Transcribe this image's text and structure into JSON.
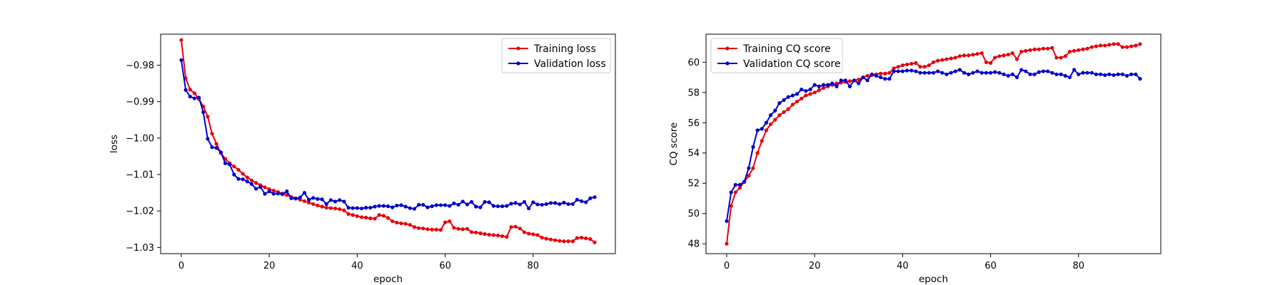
{
  "chart_data": [
    {
      "type": "line",
      "xlabel": "epoch",
      "ylabel": "loss",
      "xlim": [
        -4.7,
        98.7
      ],
      "ylim": [
        -1.0317,
        -0.9715
      ],
      "xticks": [
        0,
        20,
        40,
        60,
        80
      ],
      "yticks": [
        -0.98,
        -0.99,
        -1.0,
        -1.01,
        -1.02,
        -1.03
      ],
      "xtick_labels": [
        "0",
        "20",
        "40",
        "60",
        "80"
      ],
      "ytick_labels": [
        "−0.98",
        "−0.99",
        "−1.00",
        "−1.01",
        "−1.02",
        "−1.03"
      ],
      "grid": false,
      "legend_position": "top-right",
      "series": [
        {
          "name": "Training loss",
          "color": "#e8000b",
          "x": [
            0,
            1,
            2,
            3,
            4,
            5,
            6,
            7,
            8,
            9,
            10,
            11,
            12,
            13,
            14,
            15,
            16,
            17,
            18,
            19,
            20,
            21,
            22,
            23,
            24,
            25,
            26,
            27,
            28,
            29,
            30,
            31,
            32,
            33,
            34,
            35,
            36,
            37,
            38,
            39,
            40,
            41,
            42,
            43,
            44,
            45,
            46,
            47,
            48,
            49,
            50,
            51,
            52,
            53,
            54,
            55,
            56,
            57,
            58,
            59,
            60,
            61,
            62,
            63,
            64,
            65,
            66,
            67,
            68,
            69,
            70,
            71,
            72,
            73,
            74,
            75,
            76,
            77,
            78,
            79,
            80,
            81,
            82,
            83,
            84,
            85,
            86,
            87,
            88,
            89,
            90,
            91,
            92,
            93,
            94
          ],
          "values": [
            -0.9731,
            -0.9836,
            -0.9867,
            -0.9877,
            -0.9893,
            -0.9913,
            -0.9941,
            -0.9988,
            -1.0016,
            -1.0041,
            -1.0057,
            -1.0069,
            -1.0078,
            -1.0087,
            -1.0098,
            -1.0108,
            -1.0116,
            -1.0123,
            -1.0129,
            -1.0135,
            -1.014,
            -1.0144,
            -1.0148,
            -1.0152,
            -1.0156,
            -1.0161,
            -1.0165,
            -1.0169,
            -1.0173,
            -1.0177,
            -1.0181,
            -1.0185,
            -1.0188,
            -1.0191,
            -1.0192,
            -1.0193,
            -1.0195,
            -1.0198,
            -1.0208,
            -1.0211,
            -1.0214,
            -1.0217,
            -1.0218,
            -1.022,
            -1.0221,
            -1.0211,
            -1.0213,
            -1.0219,
            -1.0228,
            -1.0232,
            -1.0234,
            -1.0235,
            -1.0238,
            -1.0244,
            -1.0247,
            -1.0248,
            -1.025,
            -1.0251,
            -1.0251,
            -1.0252,
            -1.0231,
            -1.0228,
            -1.0246,
            -1.0249,
            -1.025,
            -1.0249,
            -1.0258,
            -1.0259,
            -1.0261,
            -1.0263,
            -1.0265,
            -1.0266,
            -1.0267,
            -1.0269,
            -1.0271,
            -1.0244,
            -1.0243,
            -1.0248,
            -1.0258,
            -1.0262,
            -1.0264,
            -1.0266,
            -1.0273,
            -1.0276,
            -1.0278,
            -1.028,
            -1.0282,
            -1.0283,
            -1.0283,
            -1.0283,
            -1.0274,
            -1.0273,
            -1.0275,
            -1.0277,
            -1.0286
          ]
        },
        {
          "name": "Validation loss",
          "color": "#0000cc",
          "x": [
            0,
            1,
            2,
            3,
            4,
            5,
            6,
            7,
            8,
            9,
            10,
            11,
            12,
            13,
            14,
            15,
            16,
            17,
            18,
            19,
            20,
            21,
            22,
            23,
            24,
            25,
            26,
            27,
            28,
            29,
            30,
            31,
            32,
            33,
            34,
            35,
            36,
            37,
            38,
            39,
            40,
            41,
            42,
            43,
            44,
            45,
            46,
            47,
            48,
            49,
            50,
            51,
            52,
            53,
            54,
            55,
            56,
            57,
            58,
            59,
            60,
            61,
            62,
            63,
            64,
            65,
            66,
            67,
            68,
            69,
            70,
            71,
            72,
            73,
            74,
            75,
            76,
            77,
            78,
            79,
            80,
            81,
            82,
            83,
            84,
            85,
            86,
            87,
            88,
            89,
            90,
            91,
            92,
            93,
            94
          ],
          "values": [
            -0.9786,
            -0.9868,
            -0.9886,
            -0.9891,
            -0.9889,
            -0.9929,
            -1.0002,
            -1.0025,
            -1.0027,
            -1.0039,
            -1.0069,
            -1.0072,
            -1.01,
            -1.0112,
            -1.0113,
            -1.0119,
            -1.0126,
            -1.0139,
            -1.0134,
            -1.0153,
            -1.0146,
            -1.0153,
            -1.0152,
            -1.0154,
            -1.0146,
            -1.0165,
            -1.0166,
            -1.0163,
            -1.015,
            -1.0169,
            -1.0164,
            -1.0167,
            -1.0168,
            -1.0181,
            -1.017,
            -1.0174,
            -1.017,
            -1.0174,
            -1.0191,
            -1.0192,
            -1.0192,
            -1.0193,
            -1.0191,
            -1.0191,
            -1.0188,
            -1.0186,
            -1.0186,
            -1.0187,
            -1.019,
            -1.0185,
            -1.0184,
            -1.0188,
            -1.0192,
            -1.0194,
            -1.0183,
            -1.0183,
            -1.019,
            -1.0187,
            -1.0184,
            -1.0184,
            -1.0184,
            -1.0186,
            -1.0179,
            -1.0183,
            -1.0174,
            -1.0182,
            -1.0175,
            -1.0188,
            -1.019,
            -1.0175,
            -1.0176,
            -1.0186,
            -1.0187,
            -1.0187,
            -1.0186,
            -1.018,
            -1.0178,
            -1.0182,
            -1.0175,
            -1.0193,
            -1.0176,
            -1.0182,
            -1.0183,
            -1.0181,
            -1.0178,
            -1.0178,
            -1.0181,
            -1.0177,
            -1.0181,
            -1.0181,
            -1.0169,
            -1.0173,
            -1.0176,
            -1.0165,
            -1.0162
          ]
        }
      ]
    },
    {
      "type": "line",
      "xlabel": "epoch",
      "ylabel": "CQ score",
      "xlim": [
        -4.7,
        98.7
      ],
      "ylim": [
        47.35,
        61.85
      ],
      "xticks": [
        0,
        20,
        40,
        60,
        80
      ],
      "yticks": [
        48,
        50,
        52,
        54,
        56,
        58,
        60
      ],
      "xtick_labels": [
        "0",
        "20",
        "40",
        "60",
        "80"
      ],
      "ytick_labels": [
        "48",
        "50",
        "52",
        "54",
        "56",
        "58",
        "60"
      ],
      "grid": false,
      "legend_position": "top-left",
      "series": [
        {
          "name": "Training CQ score",
          "color": "#e8000b",
          "x": [
            0,
            1,
            2,
            3,
            4,
            5,
            6,
            7,
            8,
            9,
            10,
            11,
            12,
            13,
            14,
            15,
            16,
            17,
            18,
            19,
            20,
            21,
            22,
            23,
            24,
            25,
            26,
            27,
            28,
            29,
            30,
            31,
            32,
            33,
            34,
            35,
            36,
            37,
            38,
            39,
            40,
            41,
            42,
            43,
            44,
            45,
            46,
            47,
            48,
            49,
            50,
            51,
            52,
            53,
            54,
            55,
            56,
            57,
            58,
            59,
            60,
            61,
            62,
            63,
            64,
            65,
            66,
            67,
            68,
            69,
            70,
            71,
            72,
            73,
            74,
            75,
            76,
            77,
            78,
            79,
            80,
            81,
            82,
            83,
            84,
            85,
            86,
            87,
            88,
            89,
            90,
            91,
            92,
            93,
            94
          ],
          "values": [
            48.0,
            50.5,
            51.4,
            51.7,
            52.1,
            52.5,
            53.0,
            54.0,
            54.8,
            55.5,
            55.9,
            56.2,
            56.5,
            56.7,
            56.9,
            57.2,
            57.4,
            57.6,
            57.8,
            57.9,
            58.0,
            58.15,
            58.3,
            58.4,
            58.5,
            58.6,
            58.65,
            58.7,
            58.75,
            58.8,
            58.85,
            59.0,
            59.1,
            59.15,
            59.2,
            59.25,
            59.25,
            59.3,
            59.6,
            59.7,
            59.8,
            59.85,
            59.9,
            59.95,
            59.7,
            59.7,
            59.8,
            60.0,
            60.1,
            60.15,
            60.2,
            60.25,
            60.3,
            60.4,
            60.45,
            60.45,
            60.5,
            60.55,
            60.6,
            60.0,
            59.95,
            60.3,
            60.4,
            60.45,
            60.5,
            60.6,
            60.2,
            60.7,
            60.75,
            60.8,
            60.85,
            60.85,
            60.9,
            60.9,
            60.95,
            60.3,
            60.3,
            60.4,
            60.7,
            60.75,
            60.8,
            60.85,
            60.9,
            61.0,
            61.05,
            61.1,
            61.1,
            61.15,
            61.2,
            61.2,
            61.0,
            61.0,
            61.05,
            61.1,
            61.2
          ]
        },
        {
          "name": "Validation CQ score",
          "color": "#0000cc",
          "x": [
            0,
            1,
            2,
            3,
            4,
            5,
            6,
            7,
            8,
            9,
            10,
            11,
            12,
            13,
            14,
            15,
            16,
            17,
            18,
            19,
            20,
            21,
            22,
            23,
            24,
            25,
            26,
            27,
            28,
            29,
            30,
            31,
            32,
            33,
            34,
            35,
            36,
            37,
            38,
            39,
            40,
            41,
            42,
            43,
            44,
            45,
            46,
            47,
            48,
            49,
            50,
            51,
            52,
            53,
            54,
            55,
            56,
            57,
            58,
            59,
            60,
            61,
            62,
            63,
            64,
            65,
            66,
            67,
            68,
            69,
            70,
            71,
            72,
            73,
            74,
            75,
            76,
            77,
            78,
            79,
            80,
            81,
            82,
            83,
            84,
            85,
            86,
            87,
            88,
            89,
            90,
            91,
            92,
            93,
            94
          ],
          "values": [
            49.5,
            51.4,
            51.9,
            51.9,
            52.1,
            53.0,
            54.4,
            55.5,
            55.6,
            56.0,
            56.5,
            56.8,
            57.3,
            57.5,
            57.7,
            57.8,
            57.9,
            58.2,
            58.1,
            58.2,
            58.5,
            58.4,
            58.5,
            58.5,
            58.6,
            58.4,
            58.8,
            58.8,
            58.4,
            58.8,
            58.6,
            59.0,
            58.8,
            59.2,
            59.1,
            59.0,
            58.9,
            58.9,
            59.4,
            59.4,
            59.4,
            59.45,
            59.45,
            59.4,
            59.3,
            59.3,
            59.3,
            59.3,
            59.4,
            59.3,
            59.2,
            59.3,
            59.4,
            59.5,
            59.3,
            59.2,
            59.3,
            59.4,
            59.3,
            59.3,
            59.3,
            59.35,
            59.3,
            59.2,
            59.1,
            59.2,
            59.0,
            59.5,
            59.4,
            59.2,
            59.2,
            59.35,
            59.4,
            59.4,
            59.3,
            59.2,
            59.2,
            59.1,
            59.0,
            59.5,
            59.2,
            59.3,
            59.3,
            59.3,
            59.2,
            59.2,
            59.15,
            59.2,
            59.15,
            59.2,
            59.2,
            59.1,
            59.2,
            59.2,
            58.9
          ]
        }
      ]
    }
  ]
}
